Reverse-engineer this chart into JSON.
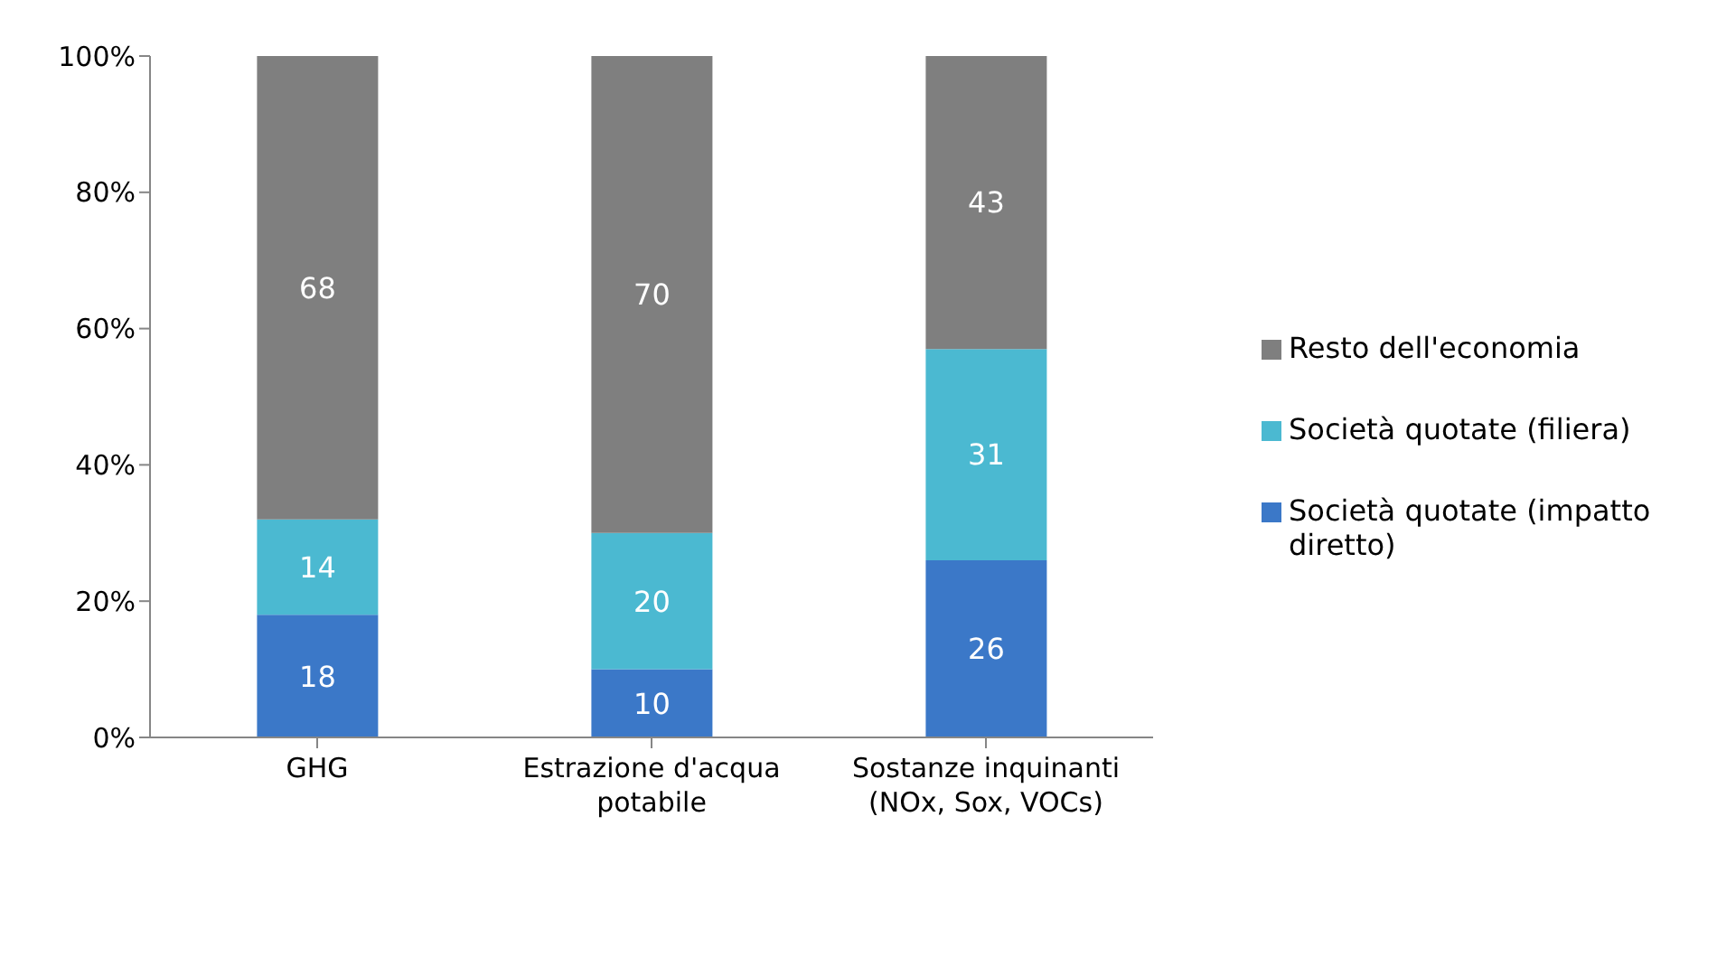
{
  "chart_data": {
    "type": "bar",
    "stacked": true,
    "categories": [
      "GHG",
      "Estrazione d'acqua potabile",
      "Sostanze inquinanti (NOx, Sox, VOCs)"
    ],
    "series": [
      {
        "name": "Società quotate (impatto diretto)",
        "color": "#3b78c8",
        "values": [
          18,
          10,
          26
        ]
      },
      {
        "name": "Società quotate (filiera)",
        "color": "#4bb9d1",
        "values": [
          14,
          20,
          31
        ]
      },
      {
        "name": "Resto dell'economia",
        "color": "#7f7f7f",
        "values": [
          68,
          70,
          43
        ]
      }
    ],
    "ylim": [
      0,
      100
    ],
    "yticks": [
      {
        "value": 0,
        "label": "0%"
      },
      {
        "value": 20,
        "label": "20%"
      },
      {
        "value": 40,
        "label": "40%"
      },
      {
        "value": 60,
        "label": "60%"
      },
      {
        "value": 80,
        "label": "80%"
      },
      {
        "value": 100,
        "label": "100%"
      }
    ],
    "data_labels": true,
    "legend": "right"
  }
}
